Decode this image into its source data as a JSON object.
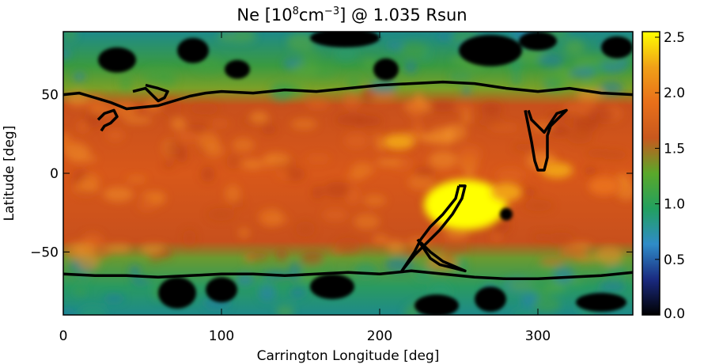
{
  "chart_data": {
    "type": "heatmap",
    "title_main": "Ne [10",
    "title_sup1": "8",
    "title_mid": "cm",
    "title_sup2": "−3",
    "title_end": "] @ 1.035 Rsun",
    "xlabel": "Carrington Longitude [deg]",
    "ylabel": "Latitude [deg]",
    "xlim": [
      0,
      360
    ],
    "ylim": [
      -90,
      90
    ],
    "x_ticks": [
      0,
      100,
      200,
      300
    ],
    "x_tick_labels": [
      "0",
      "100",
      "200",
      "300"
    ],
    "y_ticks": [
      50,
      0,
      -50
    ],
    "y_tick_labels": [
      "50",
      "0",
      "−50"
    ],
    "colorbar": {
      "range": [
        0,
        2.55
      ],
      "ticks": [
        0,
        0.5,
        1.0,
        1.5,
        2.0,
        2.5
      ],
      "tick_labels": [
        "0.0",
        "0.5",
        "1.0",
        "1.5",
        "2.0",
        "2.5"
      ],
      "colors": [
        "#000000",
        "#1a2a80",
        "#2f8cc8",
        "#22a060",
        "#5aa82a",
        "#c8581e",
        "#e8701a",
        "#f0a018",
        "#ffff00"
      ]
    },
    "contours": [
      {
        "name": "north-boundary",
        "points": [
          [
            0,
            50
          ],
          [
            10,
            51
          ],
          [
            20,
            48
          ],
          [
            30,
            45
          ],
          [
            40,
            41
          ],
          [
            50,
            42
          ],
          [
            60,
            43
          ],
          [
            70,
            46
          ],
          [
            80,
            49
          ],
          [
            90,
            51
          ],
          [
            100,
            52
          ],
          [
            120,
            51
          ],
          [
            140,
            53
          ],
          [
            160,
            52
          ],
          [
            180,
            54
          ],
          [
            200,
            56
          ],
          [
            220,
            57
          ],
          [
            240,
            58
          ],
          [
            260,
            57
          ],
          [
            280,
            54
          ],
          [
            300,
            52
          ],
          [
            320,
            54
          ],
          [
            340,
            51
          ],
          [
            360,
            50
          ]
        ]
      },
      {
        "name": "south-boundary",
        "points": [
          [
            0,
            -64
          ],
          [
            20,
            -65
          ],
          [
            40,
            -65
          ],
          [
            60,
            -66
          ],
          [
            80,
            -65
          ],
          [
            100,
            -64
          ],
          [
            120,
            -64
          ],
          [
            140,
            -65
          ],
          [
            160,
            -64
          ],
          [
            180,
            -63
          ],
          [
            200,
            -64
          ],
          [
            220,
            -62
          ],
          [
            240,
            -64
          ],
          [
            260,
            -66
          ],
          [
            280,
            -67
          ],
          [
            300,
            -67
          ],
          [
            320,
            -66
          ],
          [
            340,
            -65
          ],
          [
            360,
            -63
          ]
        ]
      },
      {
        "name": "north-west-loop",
        "points": [
          [
            22,
            34
          ],
          [
            26,
            38
          ],
          [
            32,
            40
          ],
          [
            34,
            36
          ],
          [
            30,
            32
          ],
          [
            26,
            30
          ],
          [
            24,
            27
          ]
        ]
      },
      {
        "name": "north-west-loop-2",
        "points": [
          [
            44,
            52
          ],
          [
            52,
            54
          ],
          [
            56,
            50
          ],
          [
            60,
            46
          ],
          [
            64,
            48
          ],
          [
            66,
            52
          ],
          [
            60,
            54
          ],
          [
            52,
            56
          ]
        ]
      },
      {
        "name": "east-plume",
        "points": [
          [
            292,
            40
          ],
          [
            294,
            30
          ],
          [
            296,
            20
          ],
          [
            298,
            8
          ],
          [
            300,
            2
          ],
          [
            304,
            2
          ],
          [
            306,
            10
          ],
          [
            306,
            24
          ],
          [
            308,
            30
          ],
          [
            314,
            36
          ],
          [
            318,
            40
          ],
          [
            312,
            38
          ],
          [
            308,
            32
          ],
          [
            304,
            26
          ],
          [
            300,
            30
          ],
          [
            296,
            34
          ],
          [
            294,
            40
          ]
        ]
      },
      {
        "name": "central-filament",
        "points": [
          [
            250,
            -8
          ],
          [
            248,
            -16
          ],
          [
            240,
            -26
          ],
          [
            232,
            -34
          ],
          [
            226,
            -42
          ],
          [
            222,
            -50
          ],
          [
            218,
            -56
          ],
          [
            214,
            -62
          ],
          [
            222,
            -52
          ],
          [
            230,
            -44
          ],
          [
            238,
            -36
          ],
          [
            246,
            -26
          ],
          [
            252,
            -16
          ],
          [
            254,
            -8
          ],
          [
            250,
            -8
          ]
        ]
      },
      {
        "name": "central-tail",
        "points": [
          [
            224,
            -42
          ],
          [
            228,
            -48
          ],
          [
            232,
            -54
          ],
          [
            238,
            -58
          ],
          [
            246,
            -60
          ],
          [
            254,
            -62
          ],
          [
            240,
            -56
          ],
          [
            232,
            -50
          ],
          [
            226,
            -44
          ]
        ]
      }
    ],
    "bright_regions": [
      {
        "lon": 254,
        "lat": -20,
        "value": 2.5,
        "rlon": 26,
        "rlat": 16
      },
      {
        "lon": 212,
        "lat": 20,
        "value": 2.3,
        "rlon": 10,
        "rlat": 5
      },
      {
        "lon": 312,
        "lat": 2,
        "value": 2.1,
        "rlon": 10,
        "rlat": 5
      },
      {
        "lon": 342,
        "lat": -8,
        "value": 2.0,
        "rlon": 10,
        "rlat": 6
      },
      {
        "lon": 280,
        "lat": -12,
        "value": 2.1,
        "rlon": 10,
        "rlat": 6
      }
    ],
    "coronal_holes": [
      {
        "lon": 34,
        "lat": 72,
        "rlon": 12,
        "rlat": 8
      },
      {
        "lon": 82,
        "lat": 78,
        "rlon": 10,
        "rlat": 8
      },
      {
        "lon": 110,
        "lat": 66,
        "rlon": 8,
        "rlat": 6
      },
      {
        "lon": 178,
        "lat": 86,
        "rlon": 22,
        "rlat": 6
      },
      {
        "lon": 204,
        "lat": 66,
        "rlon": 8,
        "rlat": 7
      },
      {
        "lon": 270,
        "lat": 78,
        "rlon": 20,
        "rlat": 10
      },
      {
        "lon": 300,
        "lat": 84,
        "rlon": 12,
        "rlat": 6
      },
      {
        "lon": 350,
        "lat": 80,
        "rlon": 10,
        "rlat": 7
      },
      {
        "lon": 72,
        "lat": -76,
        "rlon": 12,
        "rlat": 10
      },
      {
        "lon": 100,
        "lat": -74,
        "rlon": 10,
        "rlat": 8
      },
      {
        "lon": 170,
        "lat": -72,
        "rlon": 14,
        "rlat": 8
      },
      {
        "lon": 236,
        "lat": -84,
        "rlon": 14,
        "rlat": 7
      },
      {
        "lon": 270,
        "lat": -80,
        "rlon": 10,
        "rlat": 8
      },
      {
        "lon": 340,
        "lat": -82,
        "rlon": 16,
        "rlat": 6
      },
      {
        "lon": 280,
        "lat": -26,
        "rlon": 4,
        "rlat": 4
      }
    ]
  }
}
